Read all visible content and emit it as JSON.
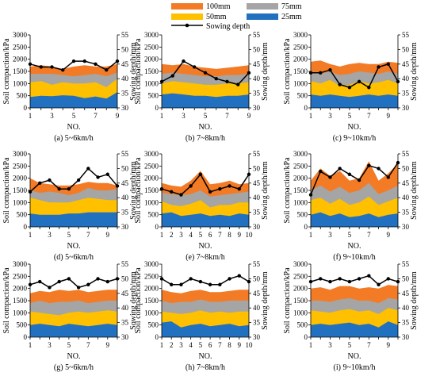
{
  "legend": {
    "items": [
      {
        "label": "100mm",
        "color": "#F37B26"
      },
      {
        "label": "75mm",
        "color": "#A5A5A5"
      },
      {
        "label": "50mm",
        "color": "#FFC000"
      },
      {
        "label": "25mm",
        "color": "#2271C0"
      },
      {
        "label": "Sowing depth",
        "color": "#000000"
      }
    ]
  },
  "chart_data": [
    {
      "type": "area",
      "caption": "(a) 5~6km/h",
      "x": [
        1,
        2,
        3,
        4,
        5,
        6,
        7,
        8,
        9
      ],
      "xticks": [
        1,
        3,
        5,
        7,
        9
      ],
      "xlabel": "NO.",
      "ylabel": "Soil compaction/kPa",
      "y2label": "Sowing depth/mm",
      "ylim": [
        0,
        3000
      ],
      "yticks": [
        0,
        500,
        1000,
        1500,
        2000,
        2500,
        3000
      ],
      "y2lim": [
        30,
        55
      ],
      "y2ticks": [
        30,
        35,
        40,
        45,
        50,
        55
      ],
      "series": [
        {
          "name": "25mm",
          "values": [
            450,
            500,
            480,
            520,
            500,
            400,
            470,
            380,
            650
          ]
        },
        {
          "name": "50mm",
          "values": [
            1050,
            1100,
            950,
            1050,
            1000,
            1000,
            1050,
            850,
            1200
          ]
        },
        {
          "name": "75mm",
          "values": [
            1400,
            1400,
            1400,
            1350,
            1300,
            1350,
            1400,
            1300,
            1450
          ]
        },
        {
          "name": "100mm",
          "values": [
            1700,
            1750,
            1700,
            1600,
            1700,
            1750,
            1700,
            1700,
            1800
          ]
        },
        {
          "name": "Sowing depth",
          "values": [
            45,
            44,
            44,
            43,
            46,
            46,
            45,
            43,
            46
          ]
        }
      ]
    },
    {
      "type": "area",
      "caption": "(b) 7~8km/h",
      "x": [
        1,
        2,
        3,
        4,
        5,
        6,
        7,
        8,
        9
      ],
      "xticks": [
        1,
        3,
        5,
        7,
        9
      ],
      "xlabel": "NO.",
      "ylabel": "Soil compaction/kPa",
      "y2label": "Sowing depth/mm",
      "ylim": [
        0,
        3000
      ],
      "yticks": [
        0,
        500,
        1000,
        1500,
        2000,
        2500,
        3000
      ],
      "y2lim": [
        30,
        55
      ],
      "y2ticks": [
        30,
        35,
        40,
        45,
        50,
        55
      ],
      "series": [
        {
          "name": "25mm",
          "values": [
            550,
            600,
            550,
            500,
            500,
            450,
            500,
            500,
            550
          ]
        },
        {
          "name": "50mm",
          "values": [
            1000,
            1100,
            1050,
            1000,
            950,
            950,
            1000,
            1000,
            1050
          ]
        },
        {
          "name": "75mm",
          "values": [
            1400,
            1450,
            1400,
            1350,
            1300,
            1300,
            1350,
            1350,
            1400
          ]
        },
        {
          "name": "100mm",
          "values": [
            1800,
            1750,
            1800,
            1700,
            1650,
            1600,
            1650,
            1700,
            1750
          ]
        },
        {
          "name": "Sowing depth",
          "values": [
            39,
            41,
            46,
            44,
            42,
            40,
            39,
            38,
            42
          ]
        }
      ]
    },
    {
      "type": "area",
      "caption": "(c) 9~10km/h",
      "x": [
        1,
        2,
        3,
        4,
        5,
        6,
        7,
        8,
        9,
        10
      ],
      "xticks": [
        1,
        3,
        5,
        7,
        9
      ],
      "xlabel": "NO.",
      "ylabel": "Soil compaction/kPa",
      "y2label": "Sowing depth/mm",
      "ylim": [
        0,
        3000
      ],
      "yticks": [
        0,
        500,
        1000,
        1500,
        2000,
        2500,
        3000
      ],
      "y2lim": [
        30,
        55
      ],
      "y2ticks": [
        30,
        35,
        40,
        45,
        50,
        55
      ],
      "series": [
        {
          "name": "25mm",
          "values": [
            550,
            500,
            550,
            500,
            450,
            500,
            550,
            500,
            550,
            500
          ]
        },
        {
          "name": "50mm",
          "values": [
            1100,
            1000,
            1150,
            900,
            950,
            1100,
            1000,
            1050,
            1150,
            1000
          ]
        },
        {
          "name": "75mm",
          "values": [
            1500,
            1400,
            1500,
            1350,
            1400,
            1500,
            1450,
            1400,
            1500,
            1400
          ]
        },
        {
          "name": "100mm",
          "values": [
            1900,
            1950,
            1800,
            1700,
            1800,
            1850,
            1800,
            1800,
            1900,
            1850
          ]
        },
        {
          "name": "Sowing depth",
          "values": [
            42,
            42,
            43,
            38,
            37,
            39,
            37,
            44,
            45,
            39
          ]
        }
      ]
    },
    {
      "type": "area",
      "caption": "(d) 5~6km/h",
      "x": [
        1,
        2,
        3,
        4,
        5,
        6,
        7,
        8,
        9,
        10
      ],
      "xticks": [
        1,
        3,
        5,
        7,
        9
      ],
      "xlabel": "NO.",
      "ylabel": "Soil compaction/kPa",
      "y2label": "Sowing depth/mm",
      "ylim": [
        0,
        3000
      ],
      "yticks": [
        0,
        500,
        1000,
        1500,
        2000,
        2500,
        3000
      ],
      "y2lim": [
        30,
        55
      ],
      "y2ticks": [
        30,
        35,
        40,
        45,
        50,
        55
      ],
      "series": [
        {
          "name": "25mm",
          "values": [
            550,
            500,
            500,
            500,
            550,
            550,
            600,
            600,
            600,
            600
          ]
        },
        {
          "name": "50mm",
          "values": [
            1200,
            1100,
            1000,
            1000,
            1000,
            1100,
            1200,
            1150,
            1100,
            1100
          ]
        },
        {
          "name": "75mm",
          "values": [
            1500,
            1400,
            1450,
            1400,
            1300,
            1400,
            1600,
            1500,
            1500,
            1550
          ]
        },
        {
          "name": "100mm",
          "values": [
            2000,
            1800,
            1750,
            1700,
            1700,
            1750,
            1850,
            1800,
            1800,
            1700
          ]
        },
        {
          "name": "Sowing depth",
          "values": [
            42,
            45,
            46,
            43,
            43,
            46,
            50,
            47,
            48,
            44
          ]
        }
      ]
    },
    {
      "type": "area",
      "caption": "(e) 7~8km/h",
      "x": [
        1,
        2,
        3,
        4,
        5,
        6,
        7,
        8,
        9,
        10
      ],
      "xticks": [
        1,
        2,
        3,
        4,
        5,
        6,
        7,
        8,
        9,
        10
      ],
      "xlabel": "NO.",
      "ylabel": "Soil compaction/kPa",
      "y2label": "Sowing depth/mm",
      "ylim": [
        0,
        3000
      ],
      "yticks": [
        0,
        500,
        1000,
        1500,
        2000,
        2500,
        3000
      ],
      "y2lim": [
        30,
        55
      ],
      "y2ticks": [
        30,
        35,
        40,
        45,
        50,
        55
      ],
      "series": [
        {
          "name": "25mm",
          "values": [
            550,
            600,
            450,
            500,
            550,
            450,
            500,
            450,
            550,
            500
          ]
        },
        {
          "name": "50mm",
          "values": [
            1050,
            900,
            850,
            950,
            1100,
            800,
            900,
            900,
            1000,
            1000
          ]
        },
        {
          "name": "75mm",
          "values": [
            1400,
            1350,
            1300,
            1350,
            1500,
            1250,
            1300,
            1350,
            1400,
            1450
          ]
        },
        {
          "name": "100mm",
          "values": [
            1800,
            1700,
            1650,
            1900,
            2300,
            1750,
            1800,
            1900,
            1750,
            1800
          ]
        },
        {
          "name": "Sowing depth",
          "values": [
            43,
            42,
            41,
            44,
            48,
            42,
            43,
            44,
            43,
            48
          ]
        }
      ]
    },
    {
      "type": "area",
      "caption": "(f) 9~10km/h",
      "x": [
        1,
        2,
        3,
        4,
        5,
        6,
        7,
        8,
        9,
        10
      ],
      "xticks": [
        1,
        3,
        5,
        7,
        9
      ],
      "xlabel": "NO.",
      "ylabel": "Soil compaction/kPa",
      "y2label": "Sowing depth/mm",
      "ylim": [
        0,
        3000
      ],
      "yticks": [
        0,
        500,
        1000,
        1500,
        2000,
        2500,
        3000
      ],
      "y2lim": [
        30,
        55
      ],
      "y2ticks": [
        30,
        35,
        40,
        45,
        50,
        55
      ],
      "series": [
        {
          "name": "25mm",
          "values": [
            500,
            600,
            450,
            550,
            400,
            450,
            550,
            400,
            500,
            550
          ]
        },
        {
          "name": "50mm",
          "values": [
            1100,
            1200,
            950,
            1150,
            900,
            1000,
            1250,
            900,
            1050,
            1200
          ]
        },
        {
          "name": "75mm",
          "values": [
            1500,
            1700,
            1450,
            1650,
            1400,
            1500,
            1800,
            1350,
            1500,
            1700
          ]
        },
        {
          "name": "100mm",
          "values": [
            1900,
            2400,
            2100,
            2300,
            1900,
            2000,
            2700,
            1900,
            2200,
            2600
          ]
        },
        {
          "name": "Sowing depth",
          "values": [
            41,
            49,
            47,
            50,
            48,
            46,
            51,
            50,
            47,
            52
          ]
        }
      ]
    },
    {
      "type": "area",
      "caption": "(g) 5~6km/h",
      "x": [
        1,
        2,
        3,
        4,
        5,
        6,
        7,
        8,
        9,
        10
      ],
      "xticks": [
        1,
        3,
        5,
        7,
        9
      ],
      "xlabel": "NO.",
      "ylabel": "Soil compaction/kPa",
      "y2label": "Sowing depth/mm",
      "ylim": [
        0,
        3000
      ],
      "yticks": [
        0,
        500,
        1000,
        1500,
        2000,
        2500,
        3000
      ],
      "y2lim": [
        30,
        55
      ],
      "y2ticks": [
        30,
        35,
        40,
        45,
        50,
        55
      ],
      "series": [
        {
          "name": "25mm",
          "values": [
            500,
            550,
            500,
            450,
            550,
            500,
            450,
            500,
            550,
            500
          ]
        },
        {
          "name": "50mm",
          "values": [
            1050,
            1000,
            950,
            900,
            1000,
            1050,
            1000,
            1050,
            1100,
            1050
          ]
        },
        {
          "name": "75mm",
          "values": [
            1400,
            1500,
            1400,
            1450,
            1450,
            1500,
            1400,
            1450,
            1500,
            1500
          ]
        },
        {
          "name": "100mm",
          "values": [
            1800,
            1900,
            1850,
            1950,
            1900,
            1950,
            1850,
            1900,
            1950,
            1950
          ]
        },
        {
          "name": "Sowing depth",
          "values": [
            48,
            49,
            47,
            49,
            50,
            47,
            48,
            50,
            49,
            50
          ]
        }
      ]
    },
    {
      "type": "area",
      "caption": "(h) 7~8km/h",
      "x": [
        1,
        2,
        3,
        4,
        5,
        6,
        7,
        8,
        9,
        10
      ],
      "xticks": [
        1,
        2,
        3,
        4,
        5,
        6,
        7,
        8,
        9,
        10
      ],
      "xlabel": "NO.",
      "ylabel": "Soil compaction/kPa",
      "y2label": "Sowing depth/mm",
      "ylim": [
        0,
        3000
      ],
      "yticks": [
        0,
        500,
        1000,
        1500,
        2000,
        2500,
        3000
      ],
      "y2lim": [
        30,
        55
      ],
      "y2ticks": [
        30,
        35,
        40,
        45,
        50,
        55
      ],
      "series": [
        {
          "name": "25mm",
          "values": [
            600,
            650,
            400,
            500,
            550,
            450,
            500,
            550,
            450,
            500
          ]
        },
        {
          "name": "50mm",
          "values": [
            1050,
            1000,
            950,
            1000,
            1100,
            1000,
            1050,
            1000,
            1050,
            1050
          ]
        },
        {
          "name": "75mm",
          "values": [
            1500,
            1400,
            1450,
            1450,
            1550,
            1450,
            1450,
            1500,
            1500,
            1500
          ]
        },
        {
          "name": "100mm",
          "values": [
            1950,
            1850,
            1800,
            1900,
            1950,
            1850,
            1850,
            1900,
            1950,
            1950
          ]
        },
        {
          "name": "Sowing depth",
          "values": [
            50,
            48,
            48,
            50,
            49,
            48,
            48,
            50,
            51,
            49
          ]
        }
      ]
    },
    {
      "type": "area",
      "caption": "(i) 9~10km/h",
      "x": [
        1,
        2,
        3,
        4,
        5,
        6,
        7,
        8,
        9,
        10
      ],
      "xticks": [
        1,
        3,
        5,
        7,
        9
      ],
      "xlabel": "NO.",
      "ylabel": "Soil compaction/kPa",
      "y2label": "Sowing depth/mm",
      "ylim": [
        0,
        3000
      ],
      "yticks": [
        0,
        500,
        1000,
        1500,
        2000,
        2500,
        3000
      ],
      "y2lim": [
        30,
        55
      ],
      "y2ticks": [
        30,
        35,
        40,
        45,
        50,
        55
      ],
      "series": [
        {
          "name": "25mm",
          "values": [
            500,
            550,
            500,
            550,
            600,
            500,
            550,
            400,
            650,
            500
          ]
        },
        {
          "name": "50mm",
          "values": [
            1100,
            1050,
            1000,
            1100,
            1150,
            1050,
            1100,
            950,
            1200,
            1100
          ]
        },
        {
          "name": "75mm",
          "values": [
            1500,
            1500,
            1450,
            1550,
            1600,
            1500,
            1500,
            1400,
            1600,
            1550
          ]
        },
        {
          "name": "100mm",
          "values": [
            2000,
            2050,
            1950,
            2100,
            2100,
            2000,
            2050,
            2000,
            2150,
            2100
          ]
        },
        {
          "name": "Sowing depth",
          "values": [
            49,
            50,
            49,
            50,
            49,
            50,
            51,
            48,
            50,
            49
          ]
        }
      ]
    }
  ]
}
